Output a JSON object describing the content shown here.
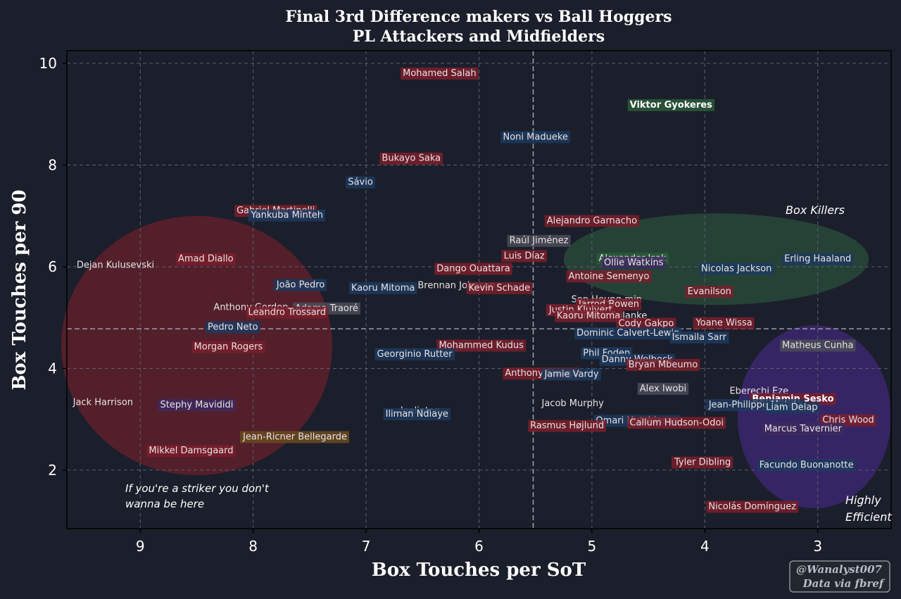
{
  "chart_data": {
    "type": "scatter",
    "title": "Final 3rd Difference makers vs Ball Hoggers",
    "subtitle": "PL Attackers and Midfielders",
    "xlabel": "Box Touches per SoT",
    "ylabel": "Box Touches per 90",
    "xlim": [
      9.65,
      2.35
    ],
    "ylim": [
      0.85,
      10.25
    ],
    "x_reversed": true,
    "x_ticks": [
      "9",
      "8",
      "7",
      "6",
      "5",
      "4",
      "3"
    ],
    "y_ticks": [
      "2",
      "4",
      "6",
      "8",
      "10"
    ],
    "grid": true,
    "mean_lines": {
      "x": 5.52,
      "y": 4.78
    },
    "annotations": {
      "box_killers": "Box Killers",
      "highly_efficient_1": "Highly",
      "highly_efficient_2": "Efficient",
      "striker_note_1": "If you're a striker you don't",
      "striker_note_2": "wanna be here"
    },
    "zones": [
      {
        "cx": 8.5,
        "cy": 4.45,
        "rx": 1.2,
        "ry": 2.55,
        "color": "#7a1f2b"
      },
      {
        "cx": 3.9,
        "cy": 6.15,
        "rx": 1.35,
        "ry": 0.9,
        "color": "#2f5a3f"
      },
      {
        "cx": 3.03,
        "cy": 3.05,
        "rx": 0.68,
        "ry": 1.8,
        "color": "#4a2a8a"
      }
    ],
    "players": [
      {
        "name": "Mohamed Salah",
        "x": 6.35,
        "y": 9.82,
        "team": "red"
      },
      {
        "name": "Viktor Gyokeres",
        "x": 4.3,
        "y": 9.2,
        "team": "green",
        "highlight": true
      },
      {
        "name": "Noni Madueke",
        "x": 5.5,
        "y": 8.57,
        "team": "blue"
      },
      {
        "name": "Bukayo Saka",
        "x": 6.6,
        "y": 8.15,
        "team": "red"
      },
      {
        "name": "Sávio",
        "x": 7.05,
        "y": 7.68,
        "team": "blue"
      },
      {
        "name": "Gabriel Martinelli",
        "x": 7.8,
        "y": 7.12,
        "team": "red"
      },
      {
        "name": "Yankuba Minteh",
        "x": 7.7,
        "y": 7.03,
        "team": "blue"
      },
      {
        "name": "Alejandro Garnacho",
        "x": 5.0,
        "y": 6.92,
        "team": "red"
      },
      {
        "name": "Raúl Jiménez",
        "x": 5.47,
        "y": 6.53,
        "team": "grey"
      },
      {
        "name": "Luis Díaz",
        "x": 5.6,
        "y": 6.23,
        "team": "red"
      },
      {
        "name": "Alexander Isak",
        "x": 4.64,
        "y": 6.18,
        "team": "green"
      },
      {
        "name": "Ollie Watkins",
        "x": 4.63,
        "y": 6.1,
        "team": "purple"
      },
      {
        "name": "Erling Haaland",
        "x": 3.0,
        "y": 6.17,
        "team": "blue"
      },
      {
        "name": "Dejan Kulusevski",
        "x": 9.22,
        "y": 6.05,
        "team": "none"
      },
      {
        "name": "Amad Diallo",
        "x": 8.42,
        "y": 6.17,
        "team": "red"
      },
      {
        "name": "Dango Ouattara",
        "x": 6.05,
        "y": 5.98,
        "team": "red"
      },
      {
        "name": "Nicolas Jackson",
        "x": 3.72,
        "y": 5.98,
        "team": "blue"
      },
      {
        "name": "Antoine Semenyo",
        "x": 4.85,
        "y": 5.83,
        "team": "red"
      },
      {
        "name": "João Pedro",
        "x": 7.58,
        "y": 5.66,
        "team": "blue"
      },
      {
        "name": "Kaoru Mitoma",
        "x": 6.85,
        "y": 5.6,
        "team": "blue"
      },
      {
        "name": "Brennan Johnson",
        "x": 6.2,
        "y": 5.65,
        "team": "none"
      },
      {
        "name": "Kevin Schade",
        "x": 5.82,
        "y": 5.6,
        "team": "red"
      },
      {
        "name": "Evanilson",
        "x": 3.96,
        "y": 5.53,
        "team": "red"
      },
      {
        "name": "Son Heung-min",
        "x": 4.87,
        "y": 5.37,
        "team": "none"
      },
      {
        "name": "Jarrod Bowen",
        "x": 4.85,
        "y": 5.28,
        "team": "red"
      },
      {
        "name": "Anthony Gordon",
        "x": 8.02,
        "y": 5.22,
        "team": "none"
      },
      {
        "name": "Adama Traoré",
        "x": 7.35,
        "y": 5.2,
        "team": "grey"
      },
      {
        "name": "Leandro Trossard",
        "x": 7.7,
        "y": 5.12,
        "team": "red"
      },
      {
        "name": "Justin Kluivert",
        "x": 5.1,
        "y": 5.17,
        "team": "red"
      },
      {
        "name": "Dominic Solanke",
        "x": 4.85,
        "y": 5.05,
        "team": "none"
      },
      {
        "name": "Kaoru Mitoma",
        "x": 5.03,
        "y": 5.05,
        "team": "red"
      },
      {
        "name": "Cody Gakpo",
        "x": 4.52,
        "y": 4.9,
        "team": "red"
      },
      {
        "name": "Yoane Wissa",
        "x": 3.83,
        "y": 4.91,
        "team": "red"
      },
      {
        "name": "Pedro Neto",
        "x": 8.18,
        "y": 4.83,
        "team": "blue"
      },
      {
        "name": "Dominic Calvert-Lewin",
        "x": 4.68,
        "y": 4.71,
        "team": "blue"
      },
      {
        "name": "Ismaila Sarr",
        "x": 4.05,
        "y": 4.63,
        "team": "blue"
      },
      {
        "name": "Mohammed Kudus",
        "x": 5.98,
        "y": 4.47,
        "team": "red"
      },
      {
        "name": "Matheus Cunha",
        "x": 3.0,
        "y": 4.47,
        "team": "grey"
      },
      {
        "name": "Morgan Rogers",
        "x": 8.22,
        "y": 4.44,
        "team": "red"
      },
      {
        "name": "Georginio Rutter",
        "x": 6.57,
        "y": 4.3,
        "team": "blue"
      },
      {
        "name": "Phil Foden",
        "x": 4.87,
        "y": 4.32,
        "team": "blue"
      },
      {
        "name": "Danny Welbeck",
        "x": 4.6,
        "y": 4.19,
        "team": "blue"
      },
      {
        "name": "Bryan Mbeumo",
        "x": 4.37,
        "y": 4.09,
        "team": "red"
      },
      {
        "name": "Anthony Elanga",
        "x": 5.45,
        "y": 3.92,
        "team": "red"
      },
      {
        "name": "Jamie Vardy",
        "x": 5.18,
        "y": 3.9,
        "team": "blue"
      },
      {
        "name": "Alex Iwobi",
        "x": 4.37,
        "y": 3.62,
        "team": "grey"
      },
      {
        "name": "Eberechi Eze",
        "x": 3.52,
        "y": 3.57,
        "team": "none"
      },
      {
        "name": "Benjamin Sesko",
        "x": 3.22,
        "y": 3.42,
        "team": "red",
        "highlight": true
      },
      {
        "name": "Jack Harrison",
        "x": 9.33,
        "y": 3.35,
        "team": "none"
      },
      {
        "name": "Stephy Mavididi",
        "x": 8.5,
        "y": 3.3,
        "team": "purple"
      },
      {
        "name": "Jacob Murphy",
        "x": 5.17,
        "y": 3.33,
        "team": "none"
      },
      {
        "name": "Jean-Philippe Mateta",
        "x": 3.55,
        "y": 3.3,
        "team": "blue"
      },
      {
        "name": "Liam Delap",
        "x": 3.23,
        "y": 3.25,
        "team": "blue"
      },
      {
        "name": "Joelinton",
        "x": 6.52,
        "y": 3.18,
        "team": "none"
      },
      {
        "name": "Iliman Ndiaye",
        "x": 6.55,
        "y": 3.12,
        "team": "blue"
      },
      {
        "name": "Chris Wood",
        "x": 2.73,
        "y": 3.0,
        "team": "red"
      },
      {
        "name": "Omari Hutchinson",
        "x": 4.6,
        "y": 2.99,
        "team": "blue"
      },
      {
        "name": "Callum Hudson-Odoi",
        "x": 4.25,
        "y": 2.95,
        "team": "red"
      },
      {
        "name": "Rasmus Højlund",
        "x": 5.22,
        "y": 2.89,
        "team": "red"
      },
      {
        "name": "Marcus Tavernier",
        "x": 3.13,
        "y": 2.83,
        "team": "purple"
      },
      {
        "name": "Jean-Ricner Bellegarde",
        "x": 7.63,
        "y": 2.67,
        "team": "orange"
      },
      {
        "name": "Mikkel Damsgaard",
        "x": 8.55,
        "y": 2.4,
        "team": "red"
      },
      {
        "name": "Tyler Dibling",
        "x": 4.02,
        "y": 2.17,
        "team": "red"
      },
      {
        "name": "Facundo Buonanotte",
        "x": 3.1,
        "y": 2.12,
        "team": "blue"
      },
      {
        "name": "Nicolás Domínguez",
        "x": 3.58,
        "y": 1.3,
        "team": "red"
      }
    ]
  },
  "colors": {
    "background": "#1b1f2b",
    "red": "#7a1f2b",
    "blue": "#1c3a5e",
    "green": "#2a5a3a",
    "grey": "#4a4e58",
    "purple": "#3c2a5e",
    "orange": "#6a4a1f",
    "none": "transparent"
  },
  "credit": {
    "line1": "@Wanalyst007",
    "line2": "Data via fbref"
  }
}
